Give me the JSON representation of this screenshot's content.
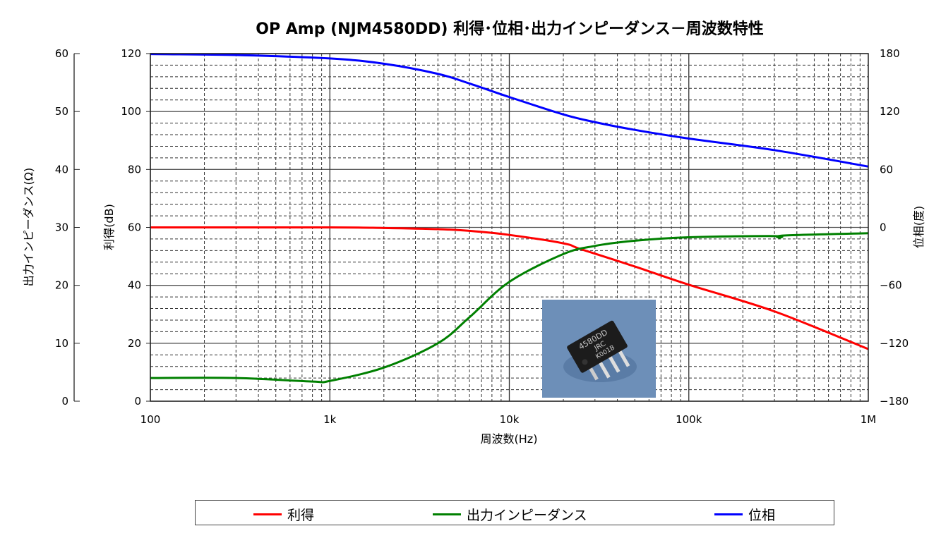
{
  "chart_data": {
    "type": "line",
    "title": "OP Amp (NJM4580DD) 利得･位相･出力インピーダンス－周波数特性",
    "xlabel": "周波数(Hz)",
    "xscale": "log",
    "xlim": [
      100,
      1000000
    ],
    "xticks": [
      {
        "v": 100,
        "label": "100"
      },
      {
        "v": 1000,
        "label": "1k"
      },
      {
        "v": 10000,
        "label": "10k"
      },
      {
        "v": 100000,
        "label": "100k"
      },
      {
        "v": 1000000,
        "label": "1M"
      }
    ],
    "axes": {
      "gain": {
        "label": "利得(dB)",
        "ylim": [
          0,
          120
        ],
        "ticks": [
          0,
          20,
          40,
          60,
          80,
          100,
          120
        ]
      },
      "impedance": {
        "label": "出力インピーダンス(Ω)",
        "ylim": [
          0,
          60
        ],
        "ticks": [
          0,
          10,
          20,
          30,
          40,
          50,
          60
        ]
      },
      "phase": {
        "label": "位相(度)",
        "ylim": [
          -180,
          180
        ],
        "ticks": [
          "180",
          "120",
          "60",
          "0",
          "−60",
          "−120",
          "−180"
        ]
      }
    },
    "grid": true,
    "legend_placement": "bottom",
    "series": [
      {
        "name": "利得",
        "axis": "gain",
        "color": "#ff0000",
        "x": [
          100,
          1000,
          2000,
          4000,
          6000,
          10000,
          20000,
          25000,
          50000,
          100000,
          300000,
          1000000
        ],
        "y": [
          60,
          60,
          59.8,
          59.4,
          58.8,
          57.4,
          54.5,
          52.5,
          46.5,
          40.2,
          31,
          18
        ]
      },
      {
        "name": "出力インピーダンス",
        "axis": "impedance",
        "color": "#008000",
        "x": [
          100,
          300,
          800,
          1000,
          2000,
          4000,
          6000,
          10000,
          20000,
          30000,
          50000,
          100000,
          300000,
          320000,
          340000,
          1000000
        ],
        "y": [
          4.0,
          4.0,
          3.4,
          3.5,
          5.8,
          10,
          14.5,
          20.6,
          25.4,
          26.8,
          27.7,
          28.3,
          28.5,
          28.2,
          28.6,
          29.0
        ]
      },
      {
        "name": "位相",
        "axis": "phase",
        "color": "#0000ff",
        "x": [
          100,
          300,
          1000,
          2000,
          4000,
          6000,
          10000,
          20000,
          30000,
          50000,
          100000,
          300000,
          1000000
        ],
        "y": [
          179.5,
          178.5,
          175,
          169.5,
          159,
          149,
          135,
          117,
          109,
          101,
          92,
          80,
          63
        ]
      }
    ]
  },
  "photo_caption": "4580DD JRC K001B"
}
